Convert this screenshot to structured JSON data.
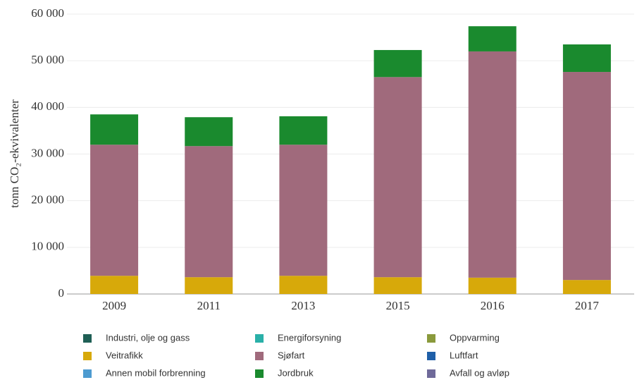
{
  "chart_data": {
    "type": "stacked-bar",
    "y_label": "tonn CO₂-ekvivalenter",
    "categories": [
      "2009",
      "2011",
      "2013",
      "2015",
      "2016",
      "2017"
    ],
    "series": [
      {
        "name": "Industri, olje og gass",
        "color": "#1f5f55",
        "values": [
          0,
          0,
          0,
          0,
          0,
          0
        ]
      },
      {
        "name": "Energiforsyning",
        "color": "#2ab0a8",
        "values": [
          0,
          0,
          0,
          0,
          0,
          0
        ]
      },
      {
        "name": "Oppvarming",
        "color": "#8a9a3c",
        "values": [
          0,
          0,
          0,
          0,
          0,
          0
        ]
      },
      {
        "name": "Veitrafikk",
        "color": "#d7a90a",
        "values": [
          3900,
          3600,
          3900,
          3600,
          3500,
          3000
        ]
      },
      {
        "name": "Sjøfart",
        "color": "#a06a7c",
        "values": [
          28100,
          28100,
          28100,
          42900,
          48500,
          44600
        ]
      },
      {
        "name": "Luftfart",
        "color": "#1f5fa8",
        "values": [
          0,
          0,
          0,
          0,
          0,
          0
        ]
      },
      {
        "name": "Annen mobil forbrenning",
        "color": "#4d9bd0",
        "values": [
          0,
          0,
          0,
          0,
          0,
          0
        ]
      },
      {
        "name": "Jordbruk",
        "color": "#1a8a2e",
        "values": [
          6500,
          6200,
          6100,
          5800,
          5400,
          5900
        ]
      },
      {
        "name": "Avfall og avløp",
        "color": "#6f6a9a",
        "values": [
          0,
          0,
          0,
          0,
          0,
          0
        ]
      }
    ],
    "ylim": [
      0,
      60000
    ],
    "yticks": [
      0,
      {
        "value": 10000,
        "label": "10 000"
      },
      {
        "value": 20000,
        "label": "20 000"
      },
      {
        "value": 30000,
        "label": "30 000"
      },
      {
        "value": 40000,
        "label": "40 000"
      },
      {
        "value": 50000,
        "label": "50 000"
      },
      {
        "value": 60000,
        "label": "60 000"
      }
    ],
    "grid": true
  }
}
